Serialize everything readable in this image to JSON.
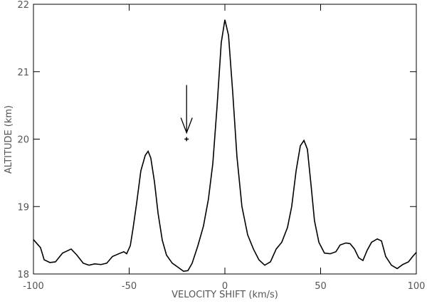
{
  "chart_data": {
    "type": "line",
    "x_label": "VELOCITY SHIFT (km/s)",
    "y_label": "ALTITUDE (km)",
    "x": [
      -100,
      -96.3,
      -94.4,
      -91.4,
      -88.5,
      -84.8,
      -80.3,
      -77.3,
      -74,
      -71,
      -68,
      -64.7,
      -61.7,
      -58.7,
      -55.4,
      -52.8,
      -51.3,
      -49.4,
      -47.9,
      -46.1,
      -43.9,
      -41.6,
      -40.1,
      -38.7,
      -36.8,
      -34.9,
      -32.7,
      -30.5,
      -27.5,
      -24.5,
      -21.6,
      -19.3,
      -17.1,
      -14.1,
      -11.2,
      -8.6,
      -6.3,
      -4.1,
      -1.9,
      0,
      1.9,
      4.1,
      6.3,
      8.9,
      11.9,
      14.9,
      17.8,
      20.8,
      23.8,
      26.8,
      29.7,
      32.7,
      34.9,
      37.2,
      39.4,
      41.3,
      43.1,
      45,
      46.8,
      49.1,
      52,
      55,
      58,
      60.2,
      63.2,
      65.4,
      67.7,
      69.9,
      72.1,
      74.3,
      76.6,
      79.6,
      81.8,
      84,
      87,
      90,
      92.9,
      95.9,
      98.1,
      100
    ],
    "series": [
      {
        "color": "#000000",
        "values": [
          18.51,
          18.39,
          18.21,
          18.17,
          18.18,
          18.31,
          18.37,
          18.28,
          18.16,
          18.13,
          18.15,
          18.14,
          18.16,
          18.26,
          18.3,
          18.33,
          18.3,
          18.42,
          18.69,
          19.05,
          19.53,
          19.76,
          19.82,
          19.72,
          19.37,
          18.9,
          18.5,
          18.28,
          18.16,
          18.1,
          18.04,
          18.05,
          18.16,
          18.42,
          18.71,
          19.11,
          19.64,
          20.48,
          21.43,
          21.77,
          21.54,
          20.69,
          19.74,
          19.0,
          18.58,
          18.37,
          18.21,
          18.13,
          18.18,
          18.37,
          18.47,
          18.69,
          19.0,
          19.53,
          19.9,
          19.98,
          19.85,
          19.32,
          18.79,
          18.47,
          18.31,
          18.3,
          18.33,
          18.43,
          18.46,
          18.45,
          18.37,
          18.24,
          18.2,
          18.35,
          18.47,
          18.52,
          18.49,
          18.26,
          18.13,
          18.08,
          18.14,
          18.18,
          18.26,
          18.32
        ]
      }
    ],
    "marker": {
      "x": -20,
      "y": 20.0,
      "error": 0.03
    },
    "xlim": [
      -100,
      100
    ],
    "xticks": [
      -100,
      -50,
      0,
      50,
      100
    ],
    "ylim": [
      18,
      22
    ],
    "yticks": [
      18,
      19,
      20,
      21,
      22
    ]
  }
}
